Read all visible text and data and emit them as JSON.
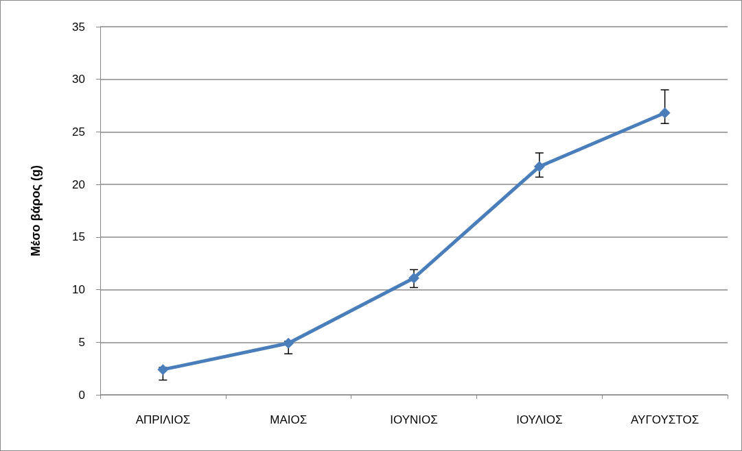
{
  "chart_data": {
    "type": "line",
    "ylabel": "Μέσο βάρος (g)",
    "categories": [
      "ΑΠΡΙΛΙΟΣ",
      "ΜΑΙΟΣ",
      "ΙΟΥΝΙΟΣ",
      "ΙΟΥΛΙΟΣ",
      "ΑΥΓΟΥΣΤΟΣ"
    ],
    "series": [
      {
        "color": "#4a7ebb",
        "values": [
          2.4,
          4.9,
          11.1,
          21.7,
          26.8
        ],
        "errors": [
          [
            1.4,
            2.6
          ],
          [
            3.9,
            5.1
          ],
          [
            10.2,
            11.9
          ],
          [
            20.7,
            23.0
          ],
          [
            25.8,
            29.0
          ]
        ]
      }
    ],
    "ylim": [
      0,
      35
    ],
    "yticks": [
      0,
      5,
      10,
      15,
      20,
      25,
      30,
      35
    ],
    "grid": "y",
    "marker": "diamond",
    "line_style": "solid"
  }
}
